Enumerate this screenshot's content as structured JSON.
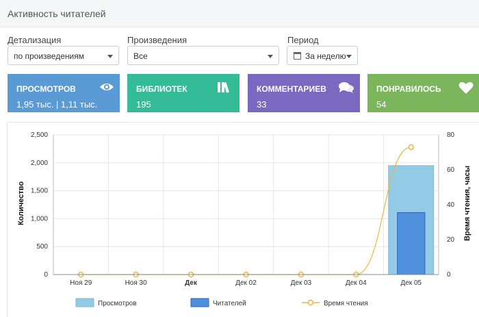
{
  "header": {
    "title": "Активность читателей"
  },
  "filters": {
    "detail": {
      "label": "Детализация",
      "value": "по произведениям"
    },
    "works": {
      "label": "Произведения",
      "value": "Все"
    },
    "period": {
      "label": "Период",
      "value": "За неделю"
    }
  },
  "cards": [
    {
      "title": "ПРОСМОТРОВ",
      "value": "1,95 тыс. | 1,11 тыс.",
      "color": "#5b9bd5",
      "icon": "eye-icon"
    },
    {
      "title": "БИБЛИОТЕК",
      "value": "195",
      "color": "#34bc99",
      "icon": "books-icon"
    },
    {
      "title": "КОММЕНТАРИЕВ",
      "value": "33",
      "color": "#7b68c0",
      "icon": "comments-icon"
    },
    {
      "title": "ПОНРАВИЛОСЬ",
      "value": "54",
      "color": "#7cb65c",
      "icon": "heart-icon"
    }
  ],
  "chart_data": {
    "type": "bar",
    "categories": [
      "Ноя 29",
      "Ноя 30",
      "Дек",
      "Дек 02",
      "Дек 03",
      "Дек 04",
      "Дек 05"
    ],
    "bold_categories": [
      "Дек"
    ],
    "ylabel": "Количество",
    "y2label": "Время чтения, часы",
    "ylim": [
      0,
      2500
    ],
    "y_ticks": [
      "0",
      "500",
      "1,000",
      "1,500",
      "2,000",
      "2,500"
    ],
    "y2lim": [
      0,
      80
    ],
    "y2_ticks": [
      "0",
      "20",
      "40",
      "60",
      "80"
    ],
    "grid": true,
    "legend_position": "bottom",
    "series": [
      {
        "name": "Просмотров",
        "type": "bar",
        "axis": "left",
        "color": "#93cbe6",
        "values": [
          0,
          0,
          0,
          0,
          0,
          0,
          1950
        ]
      },
      {
        "name": "Читателей",
        "type": "bar",
        "axis": "left",
        "color": "#4f8fdc",
        "values": [
          0,
          0,
          0,
          0,
          0,
          0,
          1110
        ]
      },
      {
        "name": "Время чтения",
        "type": "line",
        "axis": "right",
        "color": "#f0b63c",
        "values": [
          0,
          0,
          0,
          0,
          0,
          0,
          73
        ]
      }
    ]
  }
}
